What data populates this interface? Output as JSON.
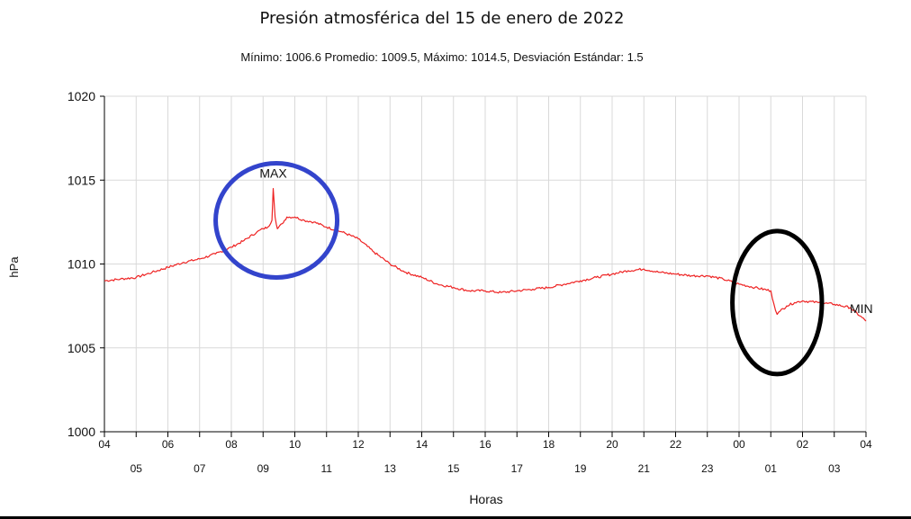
{
  "chart_data": {
    "type": "line",
    "title": "Presión atmosférica del 15 de enero de 2022",
    "subtitle": "Mínimo: 1006.6 Promedio: 1009.5, Máximo: 1014.5, Desviación Estándar: 1.5",
    "xlabel": "Horas",
    "ylabel": "hPa",
    "ylim": [
      1000,
      1020
    ],
    "yticks": [
      "1000",
      "1005",
      "1010",
      "1015",
      "1020"
    ],
    "xlim_hours": [
      0,
      24
    ],
    "xticks_row1": [
      {
        "h": 0,
        "label": "04"
      },
      {
        "h": 2,
        "label": "06"
      },
      {
        "h": 4,
        "label": "08"
      },
      {
        "h": 6,
        "label": "10"
      },
      {
        "h": 8,
        "label": "12"
      },
      {
        "h": 10,
        "label": "14"
      },
      {
        "h": 12,
        "label": "16"
      },
      {
        "h": 14,
        "label": "18"
      },
      {
        "h": 16,
        "label": "20"
      },
      {
        "h": 18,
        "label": "22"
      },
      {
        "h": 20,
        "label": "00"
      },
      {
        "h": 22,
        "label": "02"
      },
      {
        "h": 24,
        "label": "04"
      }
    ],
    "xticks_row2": [
      {
        "h": 1,
        "label": "05"
      },
      {
        "h": 3,
        "label": "07"
      },
      {
        "h": 5,
        "label": "09"
      },
      {
        "h": 7,
        "label": "11"
      },
      {
        "h": 9,
        "label": "13"
      },
      {
        "h": 11,
        "label": "15"
      },
      {
        "h": 13,
        "label": "17"
      },
      {
        "h": 15,
        "label": "19"
      },
      {
        "h": 17,
        "label": "21"
      },
      {
        "h": 19,
        "label": "23"
      },
      {
        "h": 21,
        "label": "01"
      },
      {
        "h": 23,
        "label": "03"
      }
    ],
    "grid": true,
    "series": [
      {
        "color": "#ee2222",
        "x": [
          0,
          0.5,
          1,
          1.5,
          2,
          2.5,
          3,
          3.5,
          4,
          4.4,
          4.8,
          5,
          5.15,
          5.28,
          5.32,
          5.38,
          5.45,
          5.6,
          5.75,
          6,
          6.3,
          6.6,
          7,
          7.5,
          8,
          8.5,
          9,
          9.5,
          10,
          10.5,
          11,
          11.5,
          12,
          12.5,
          13,
          13.5,
          14,
          14.5,
          15,
          15.5,
          16,
          16.5,
          17,
          17.5,
          18,
          18.5,
          19,
          19.5,
          20,
          20.5,
          21,
          21.1,
          21.2,
          21.3,
          21.5,
          21.75,
          22,
          22.5,
          23,
          23.5,
          24
        ],
        "values": [
          1009.0,
          1009.1,
          1009.2,
          1009.5,
          1009.8,
          1010.1,
          1010.3,
          1010.6,
          1011.0,
          1011.4,
          1011.9,
          1012.1,
          1012.2,
          1012.6,
          1014.5,
          1012.8,
          1012.1,
          1012.4,
          1012.8,
          1012.8,
          1012.6,
          1012.5,
          1012.2,
          1011.9,
          1011.5,
          1010.7,
          1010.0,
          1009.5,
          1009.2,
          1008.8,
          1008.6,
          1008.4,
          1008.4,
          1008.3,
          1008.4,
          1008.5,
          1008.6,
          1008.8,
          1009.0,
          1009.2,
          1009.4,
          1009.6,
          1009.7,
          1009.5,
          1009.4,
          1009.3,
          1009.3,
          1009.1,
          1008.8,
          1008.6,
          1008.4,
          1007.6,
          1007.0,
          1007.2,
          1007.5,
          1007.7,
          1007.8,
          1007.7,
          1007.6,
          1007.4,
          1006.6
        ]
      }
    ],
    "annotations": [
      {
        "text": "MAX",
        "h": 5.32,
        "value": 1014.5
      },
      {
        "text": "MIN",
        "h": 24,
        "value": 1006.6
      }
    ],
    "highlight_circles": [
      {
        "color": "#3344cc",
        "h": 5.42,
        "value": 1012.6,
        "span_hours": 3.83
      },
      {
        "color": "#000000",
        "h": 21.2,
        "value": 1007.7,
        "span_hours": 2.82
      }
    ]
  }
}
